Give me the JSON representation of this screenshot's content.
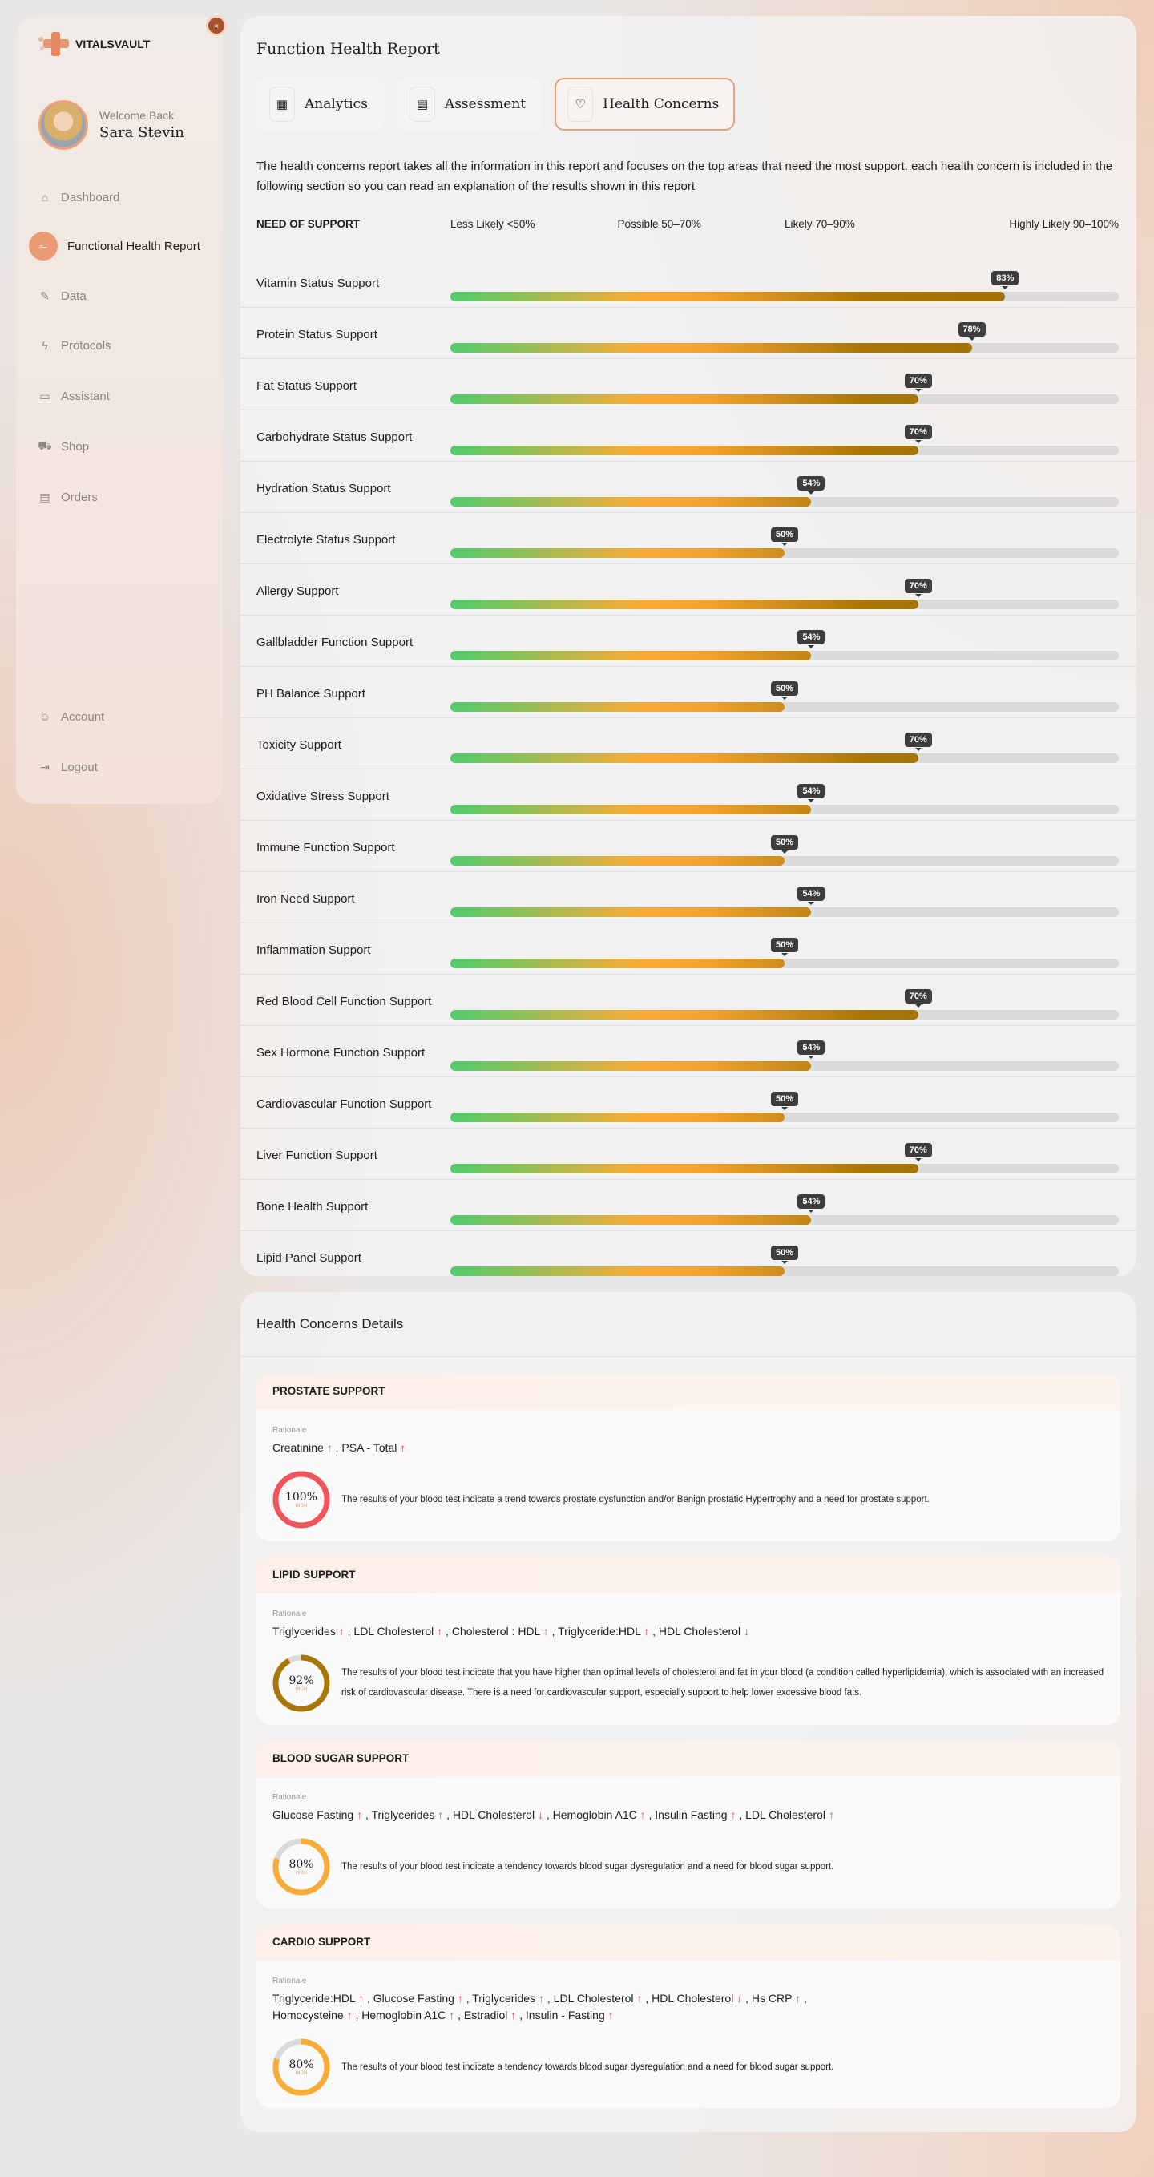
{
  "brand": {
    "name": "VITALSVAULT"
  },
  "user": {
    "welcome": "Welcome Back",
    "name": "Sara Stevin"
  },
  "nav": [
    {
      "label": "Dashboard",
      "icon": "home-icon"
    },
    {
      "label": "Functional Health Report",
      "icon": "report-icon",
      "active": true
    },
    {
      "label": "Data",
      "icon": "pen-icon"
    },
    {
      "label": "Protocols",
      "icon": "bolt-icon"
    },
    {
      "label": "Assistant",
      "icon": "chat-icon"
    },
    {
      "label": "Shop",
      "icon": "cart-icon"
    },
    {
      "label": "Orders",
      "icon": "orders-icon"
    }
  ],
  "nav_bottom": [
    {
      "label": "Account",
      "icon": "user-icon"
    },
    {
      "label": "Logout",
      "icon": "logout-icon"
    }
  ],
  "report": {
    "title": "Function Health Report",
    "tabs": [
      {
        "label": "Analytics"
      },
      {
        "label": "Assessment"
      },
      {
        "label": "Health Concerns",
        "active": true
      }
    ],
    "description": "The health concerns report takes all the information in this report and focuses on the top areas that need the most support. each health concern is included in the following section so you can read an explanation of the results shown in this report",
    "legend": {
      "header": "NEED OF SUPPORT",
      "levels": [
        "Less Likely <50%",
        "Possible 50–70%",
        "Likely 70–90%",
        "Highly Likely 90–100%"
      ]
    },
    "rows": [
      {
        "label": "Vitamin Status Support",
        "value": 83
      },
      {
        "label": "Protein Status Support",
        "value": 78
      },
      {
        "label": "Fat Status Support",
        "value": 70
      },
      {
        "label": "Carbohydrate Status Support",
        "value": 70
      },
      {
        "label": "Hydration Status Support",
        "value": 54
      },
      {
        "label": "Electrolyte Status Support",
        "value": 50
      },
      {
        "label": "Allergy Support",
        "value": 70
      },
      {
        "label": "Gallbladder Function Support",
        "value": 54
      },
      {
        "label": "PH Balance Support",
        "value": 50
      },
      {
        "label": "Toxicity Support",
        "value": 70
      },
      {
        "label": "Oxidative Stress Support",
        "value": 54
      },
      {
        "label": "Immune Function Support",
        "value": 50
      },
      {
        "label": "Iron Need Support",
        "value": 54
      },
      {
        "label": "Inflammation Support",
        "value": 50
      },
      {
        "label": "Red Blood Cell Function Support",
        "value": 70
      },
      {
        "label": "Sex Hormone Function Support",
        "value": 54
      },
      {
        "label": "Cardiovascular Function Support",
        "value": 50
      },
      {
        "label": "Liver Function Support",
        "value": 70
      },
      {
        "label": "Bone Health Support",
        "value": 54
      },
      {
        "label": "Lipid Panel Support",
        "value": 50
      }
    ]
  },
  "details": {
    "title": "Health Concerns Details",
    "rationale_label": "Rationale",
    "level_label": "HIGH",
    "cards": [
      {
        "title": "PROSTATE SUPPORT",
        "value": 100,
        "color": "#f2545b",
        "markers": [
          {
            "name": "Creatinine",
            "dir": "↑"
          },
          {
            "name": "PSA - Total",
            "dir": "↑"
          }
        ],
        "text": "The results of your blood test indicate a trend towards prostate dysfunction and/or Benign prostatic Hypertrophy and a need for prostate support."
      },
      {
        "title": "LIPID SUPPORT",
        "value": 92,
        "color": "#a87708",
        "markers": [
          {
            "name": "Triglycerides",
            "dir": "↑"
          },
          {
            "name": "LDL Cholesterol",
            "dir": "↑"
          },
          {
            "name": "Cholesterol : HDL",
            "dir": "↑"
          },
          {
            "name": "Triglyceride:HDL",
            "dir": "↑"
          },
          {
            "name": "HDL Cholesterol",
            "dir": "↓"
          }
        ],
        "text": "The results of your blood test indicate that you have higher than optimal levels of cholesterol and fat in your blood (a condition called hyperlipidemia), which is associated with an increased risk of cardiovascular disease. There is a need for cardiovascular support, especially support to help lower excessive blood fats."
      },
      {
        "title": "BLOOD SUGAR SUPPORT",
        "value": 80,
        "color": "#f8ac38",
        "markers": [
          {
            "name": "Glucose Fasting",
            "dir": "↑"
          },
          {
            "name": "Triglycerides",
            "dir": "↑"
          },
          {
            "name": "HDL Cholesterol",
            "dir": "↓"
          },
          {
            "name": "Hemoglobin A1C",
            "dir": "↑"
          },
          {
            "name": "Insulin  Fasting",
            "dir": "↑"
          },
          {
            "name": "LDL Cholesterol",
            "dir": "↑"
          }
        ],
        "text": "The results of your blood test indicate a tendency towards blood sugar dysregulation and a need for blood sugar support."
      },
      {
        "title": "CARDIO SUPPORT",
        "value": 80,
        "color": "#f8ac38",
        "markers": [
          {
            "name": "Triglyceride:HDL",
            "dir": "↑"
          },
          {
            "name": "Glucose Fasting",
            "dir": "↑"
          },
          {
            "name": "Triglycerides",
            "dir": "↑"
          },
          {
            "name": "LDL Cholesterol",
            "dir": "↑"
          },
          {
            "name": "HDL Cholesterol",
            "dir": "↓"
          },
          {
            "name": "Hs CRP",
            "dir": "↑"
          },
          {
            "name": "Homocysteine",
            "dir": "↑"
          },
          {
            "name": "Hemoglobin A1C",
            "dir": "↑"
          },
          {
            "name": "Estradiol",
            "dir": "↑"
          },
          {
            "name": "Insulin - Fasting",
            "dir": "↑"
          }
        ],
        "text": "The results of your blood test indicate a tendency towards blood sugar dysregulation and a need for blood sugar support."
      }
    ]
  }
}
